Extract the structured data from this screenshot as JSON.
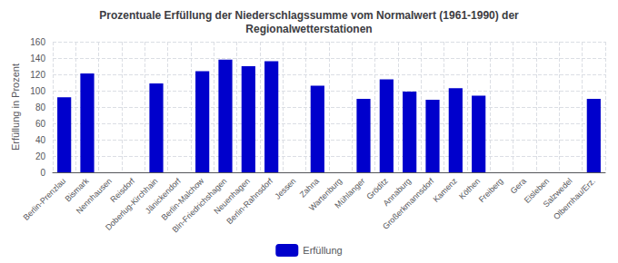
{
  "chart_data": {
    "type": "bar",
    "title": "Prozentuale Erfüllung der Niederschlagssumme vom Normalwert (1961-1990) der\nRegionalwetterstationen",
    "ylabel": "Erfüllung in Prozent",
    "categories": [
      "Berlin-Prenzlau",
      "Bismark",
      "Nennhausen",
      "Reisdorf",
      "Doberlug-Kirchhain",
      "Jänickendorf",
      "Berlin-Malchow",
      "Bln-Friedrichshagen",
      "Neuenhagen",
      "Berlin-Rahnsdorf",
      "Jessen",
      "Zahna",
      "Wartenburg",
      "Mühlanger",
      "Gröditz",
      "Annaburg",
      "Großerkmannsdorf",
      "Kamenz",
      "Köthen",
      "Freiberg",
      "Gera",
      "Eisleben",
      "Salzwedel",
      "Olbernhau/Erz."
    ],
    "series": [
      {
        "name": "Erfüllung",
        "color": "#0000CC",
        "values": [
          92,
          121,
          0,
          0,
          109,
          0,
          124,
          138,
          130,
          136,
          0,
          106,
          0,
          90,
          114,
          99,
          89,
          103,
          94,
          0,
          0,
          0,
          0,
          90
        ]
      }
    ],
    "ylim": [
      0,
      160
    ],
    "yticks": [
      0,
      20,
      40,
      60,
      80,
      100,
      120,
      140,
      160
    ],
    "grid": true,
    "legend": "bottom"
  }
}
